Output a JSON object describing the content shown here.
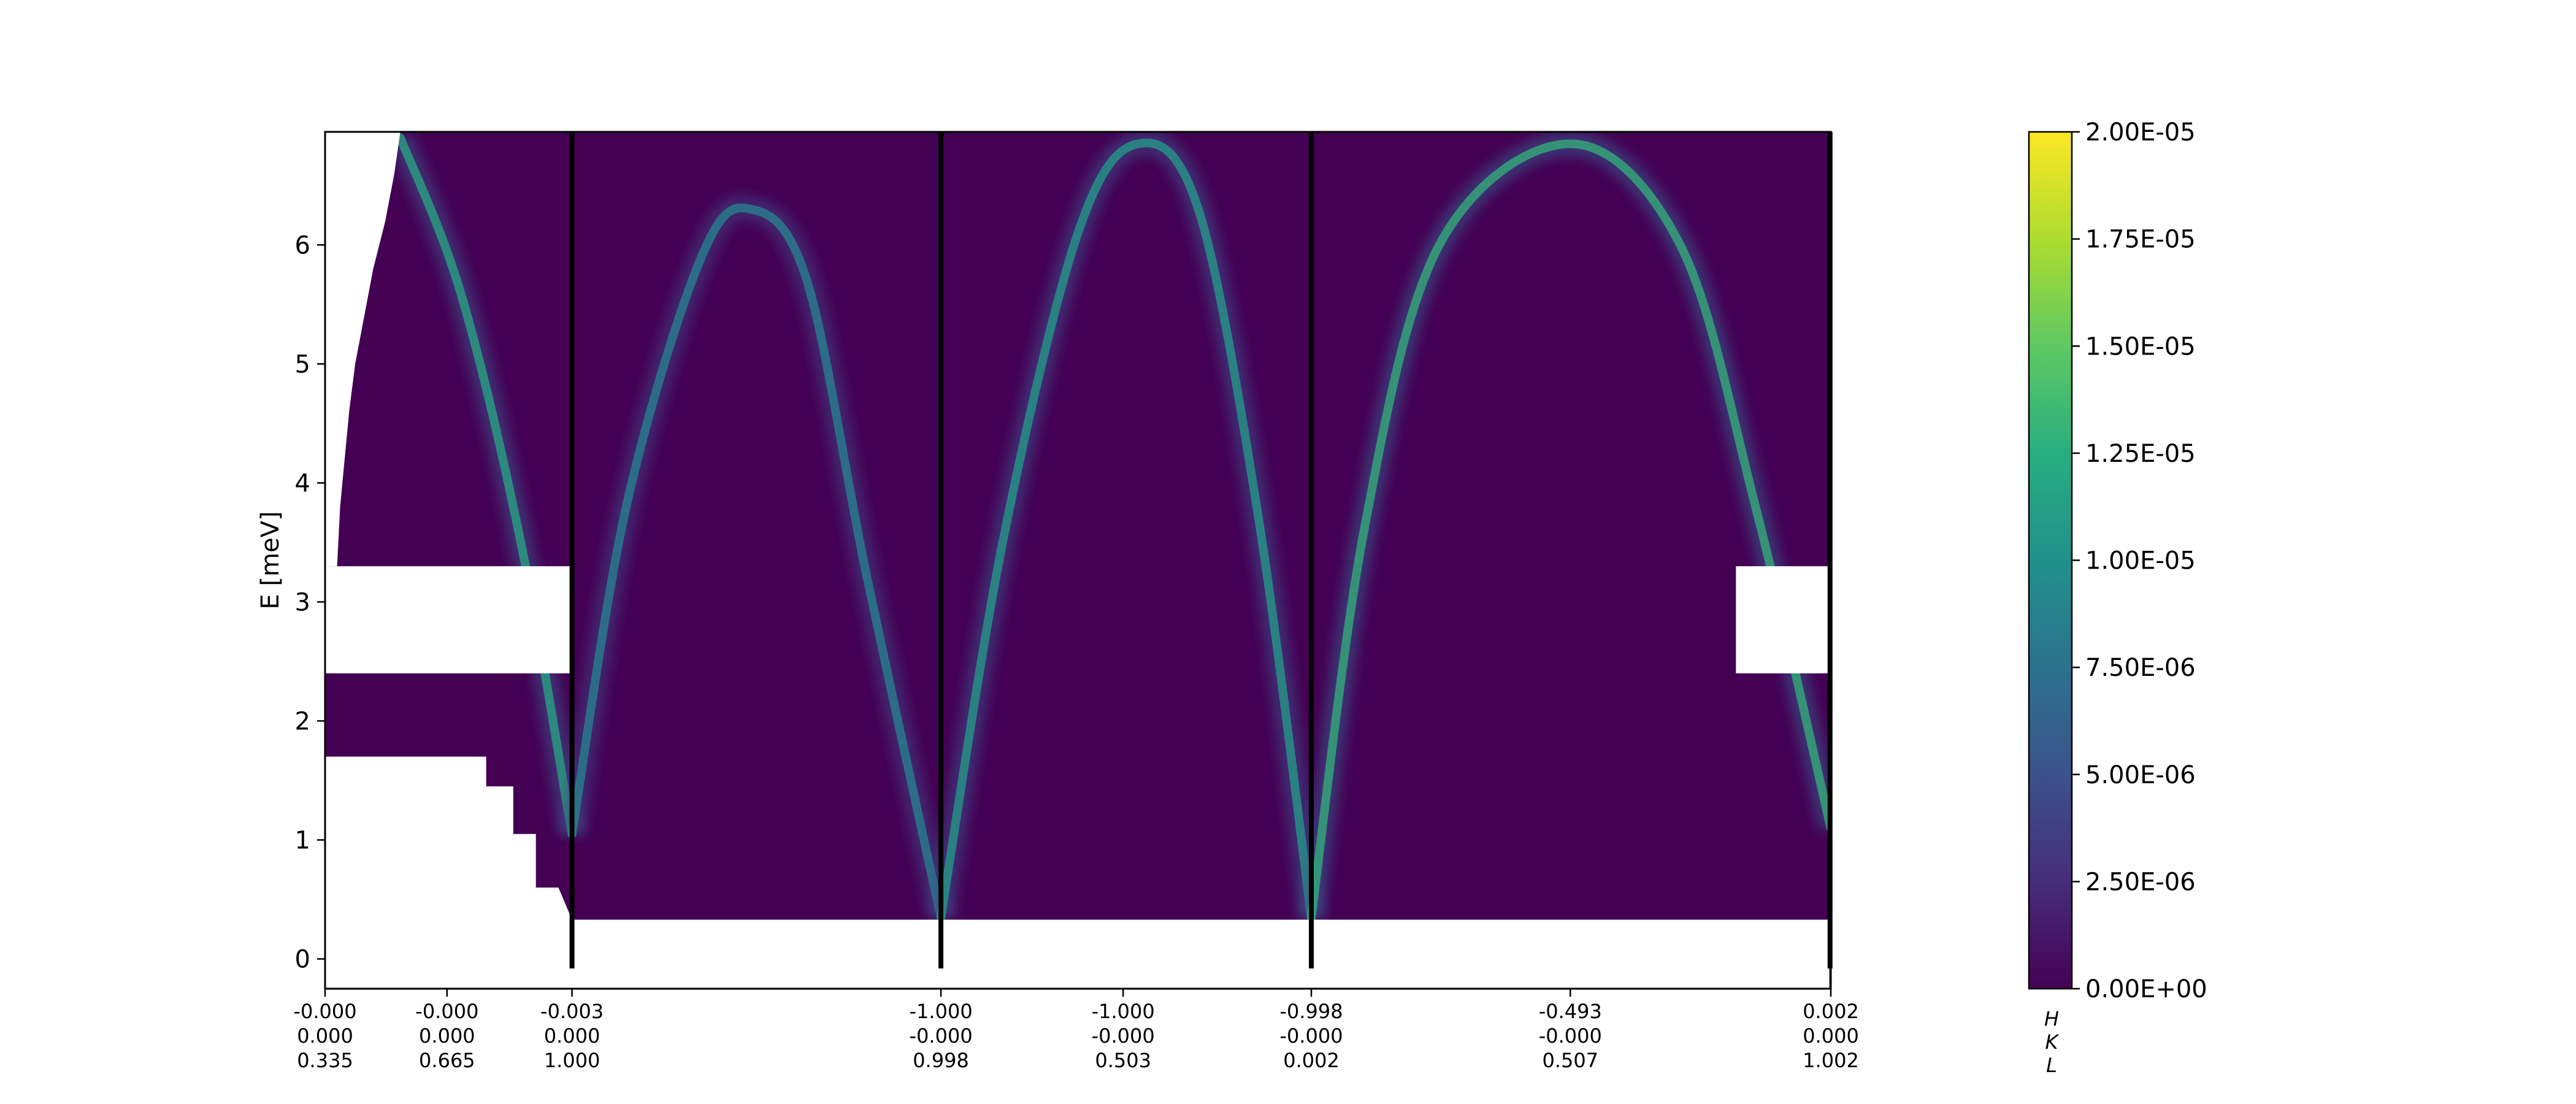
{
  "chart_data": {
    "type": "heatmap",
    "ylabel": "E [meV]",
    "ylim": [
      -0.25,
      6.95
    ],
    "y_ticks": [
      0,
      1,
      2,
      3,
      4,
      5,
      6
    ],
    "x_axis_component_labels": [
      "H",
      "K",
      "L"
    ],
    "q_path_ticks": [
      {
        "pos": 0.0,
        "H": "-0.000",
        "K": "0.000",
        "L": "0.335"
      },
      {
        "pos": 0.081,
        "H": "-0.000",
        "K": "0.000",
        "L": "0.665"
      },
      {
        "pos": 0.164,
        "H": "-0.003",
        "K": "0.000",
        "L": "1.000"
      },
      {
        "pos": 0.409,
        "H": "-1.000",
        "K": "-0.000",
        "L": "0.998"
      },
      {
        "pos": 0.53,
        "H": "-1.000",
        "K": "-0.000",
        "L": "0.503"
      },
      {
        "pos": 0.655,
        "H": "-0.998",
        "K": "-0.000",
        "L": "0.002"
      },
      {
        "pos": 0.827,
        "H": "-0.493",
        "K": "-0.000",
        "L": "0.507"
      },
      {
        "pos": 1.0,
        "H": "0.002",
        "K": "0.000",
        "L": "1.002"
      }
    ],
    "segment_boundaries": [
      0.164,
      0.409,
      0.655,
      0.9995
    ],
    "colorbar": {
      "min": 0.0,
      "max": 2e-05,
      "ticks": [
        0.0,
        2.5e-06,
        5e-06,
        7.5e-06,
        1e-05,
        1.25e-05,
        1.5e-05,
        1.75e-05,
        2e-05
      ],
      "tick_labels": [
        "0.00E+00",
        "2.50E-06",
        "5.00E-06",
        "7.50E-06",
        "1.00E-05",
        "1.25E-05",
        "1.50E-05",
        "1.75E-05",
        "2.00E-05"
      ],
      "colormap": "viridis"
    },
    "background_color": "#440154",
    "dispersion_branches": [
      {
        "x": [
          0.05,
          0.09,
          0.13,
          0.164
        ],
        "y": [
          6.9,
          5.6,
          3.5,
          1.05
        ],
        "peak_intensity": 1.2e-05
      },
      {
        "x": [
          0.164,
          0.2,
          0.25,
          0.283,
          0.32,
          0.36,
          0.409
        ],
        "y": [
          1.05,
          3.8,
          5.9,
          6.3,
          5.7,
          3.2,
          0.35
        ],
        "peak_intensity": 9e-06
      },
      {
        "x": [
          0.409,
          0.45,
          0.5,
          0.54,
          0.58,
          0.62,
          0.655
        ],
        "y": [
          0.35,
          3.5,
          6.1,
          6.85,
          6.3,
          3.7,
          0.35
        ],
        "peak_intensity": 1.1e-05
      },
      {
        "x": [
          0.655,
          0.69,
          0.74,
          0.827,
          0.9,
          0.95,
          1.0
        ],
        "y": [
          0.35,
          3.6,
          6.0,
          6.85,
          6.0,
          3.8,
          1.1
        ],
        "peak_intensity": 1.3e-05
      }
    ],
    "masked_regions": [
      {
        "x_range": [
          0.0,
          0.999
        ],
        "y_range": [
          -0.25,
          0.33
        ]
      },
      {
        "x_range": [
          0.0,
          0.164
        ],
        "y_range": [
          2.4,
          3.3
        ]
      },
      {
        "x_range": [
          0.937,
          1.0
        ],
        "y_range": [
          2.4,
          3.3
        ]
      }
    ]
  }
}
